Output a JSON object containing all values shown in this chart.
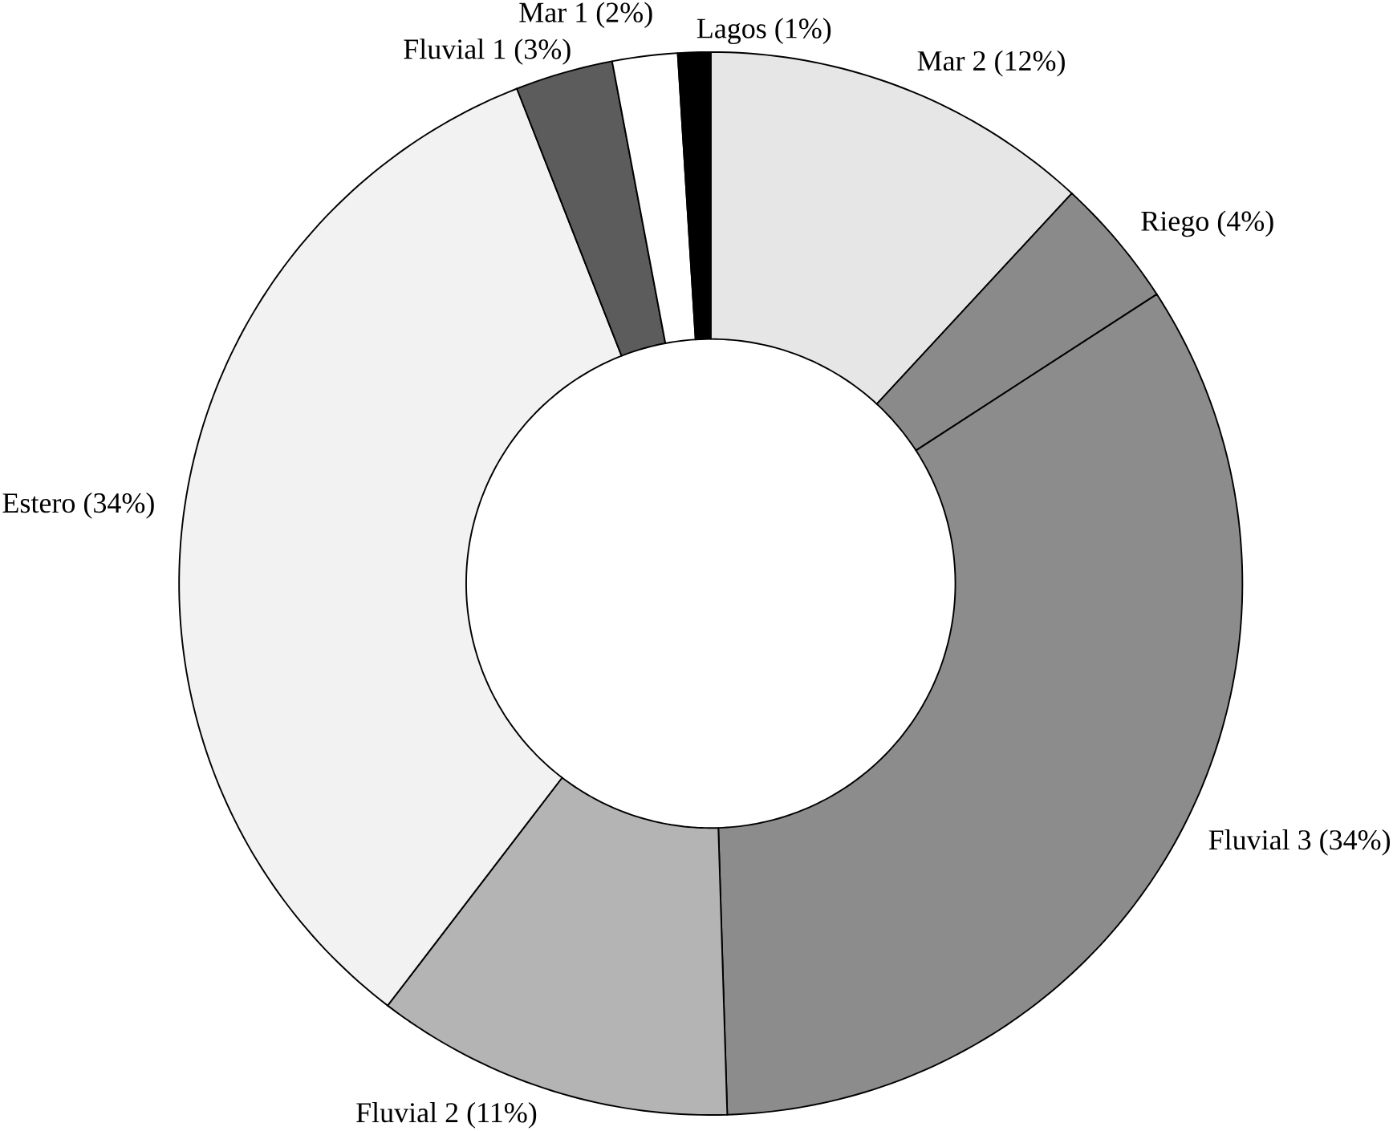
{
  "chart_data": {
    "type": "donut",
    "categories": [
      "Mar 2",
      "Riego",
      "Fluvial 3",
      "Fluvial 2",
      "Estero",
      "Fluvial 1",
      "Mar 1",
      "Lagos"
    ],
    "values": [
      12,
      4,
      34,
      11,
      34,
      3,
      2,
      1
    ],
    "value_labels": [
      "(12%)",
      "(4%)",
      "(34%)",
      "(11%)",
      "(34%)",
      "(3%)",
      "(2%)",
      "(1%)"
    ],
    "colors": [
      "#e6e6e6",
      "#8a8a8a",
      "#8c8c8c",
      "#b4b4b4",
      "#f2f2f2",
      "#5c5c5c",
      "#ffffff",
      "#000000"
    ]
  }
}
